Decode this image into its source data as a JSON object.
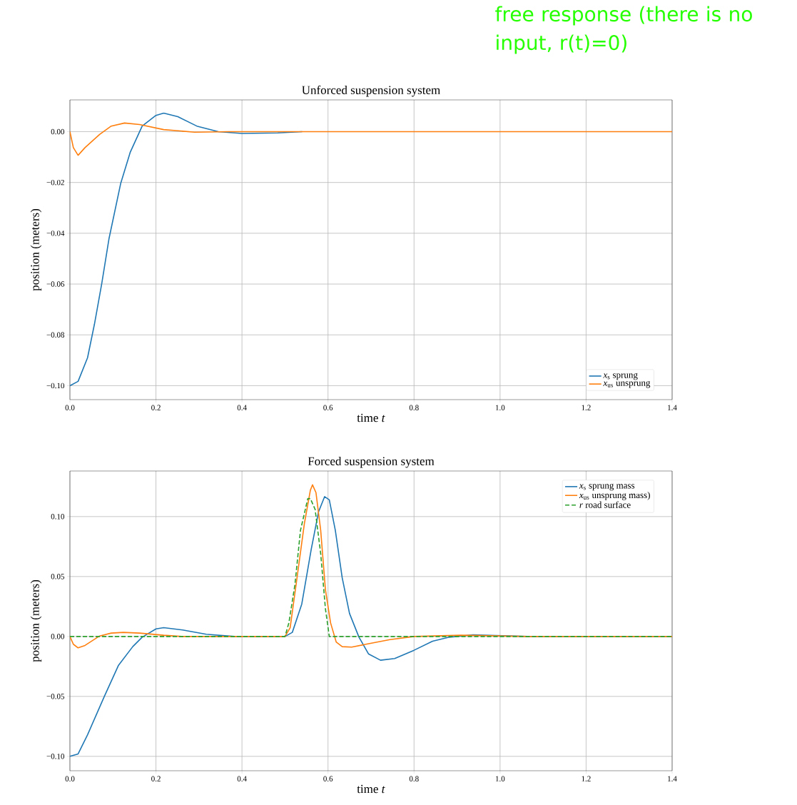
{
  "chart_data": [
    {
      "type": "line",
      "title": "Unforced suspension system",
      "xlabel": "time *t*",
      "ylabel": "position (meters)",
      "xlim": [
        0,
        1.4
      ],
      "ylim": [
        -0.1055,
        0.0125
      ],
      "xticks": [
        {
          "value": 0,
          "label": "0.0"
        },
        {
          "value": 0.2,
          "label": "0.2"
        },
        {
          "value": 0.4,
          "label": "0.4"
        },
        {
          "value": 0.6,
          "label": "0.6"
        },
        {
          "value": 0.8,
          "label": "0.8"
        },
        {
          "value": 1.0,
          "label": "1.0"
        },
        {
          "value": 1.2,
          "label": "1.2"
        },
        {
          "value": 1.4,
          "label": "1.4"
        }
      ],
      "yticks": [
        {
          "value": -0.1,
          "label": "−0.10"
        },
        {
          "value": -0.08,
          "label": "−0.08"
        },
        {
          "value": -0.06,
          "label": "−0.06"
        },
        {
          "value": -0.04,
          "label": "−0.04"
        },
        {
          "value": -0.02,
          "label": "−0.02"
        },
        {
          "value": 0,
          "label": "0.00"
        }
      ],
      "grid": true,
      "legend": "bottom right",
      "annotations": [
        "free response (there is no input, r(t)=0)"
      ],
      "series": [
        {
          "name": "*x*$_{s}$ sprung",
          "color": "#1f77b4",
          "x": [
            0,
            0.019,
            0.041,
            0.057,
            0.074,
            0.091,
            0.118,
            0.14,
            0.168,
            0.2,
            0.218,
            0.251,
            0.295,
            0.345,
            0.4,
            0.483,
            0.54
          ],
          "values": [
            -0.1,
            -0.0983,
            -0.089,
            -0.0758,
            -0.0598,
            -0.042,
            -0.0204,
            -0.0082,
            0.0022,
            0.0064,
            0.0073,
            0.0059,
            0.0022,
            0,
            -0.0007,
            -0.0005,
            0
          ]
        },
        {
          "name": "*x*$_{us}$ unsprung",
          "color": "#ff7f0e",
          "x": [
            0,
            0.008,
            0.019,
            0.035,
            0.069,
            0.096,
            0.127,
            0.162,
            0.218,
            0.29,
            0.37,
            1.4
          ],
          "values": [
            0,
            -0.0063,
            -0.0093,
            -0.0063,
            -0.0011,
            0.0022,
            0.0034,
            0.0028,
            0.0008,
            -0.0002,
            0,
            0
          ]
        }
      ]
    },
    {
      "type": "line",
      "title": "Forced suspension system",
      "xlabel": "time *t*",
      "ylabel": "position (meters)",
      "xlim": [
        0,
        1.4
      ],
      "ylim": [
        -0.112,
        0.138
      ],
      "xticks": [
        {
          "value": 0,
          "label": "0.0"
        },
        {
          "value": 0.2,
          "label": "0.2"
        },
        {
          "value": 0.4,
          "label": "0.4"
        },
        {
          "value": 0.6,
          "label": "0.6"
        },
        {
          "value": 0.8,
          "label": "0.8"
        },
        {
          "value": 1.0,
          "label": "1.0"
        },
        {
          "value": 1.2,
          "label": "1.2"
        },
        {
          "value": 1.4,
          "label": "1.4"
        }
      ],
      "yticks": [
        {
          "value": -0.1,
          "label": "−0.10"
        },
        {
          "value": -0.05,
          "label": "−0.05"
        },
        {
          "value": 0,
          "label": "0.00"
        },
        {
          "value": 0.05,
          "label": "0.05"
        },
        {
          "value": 0.1,
          "label": "0.10"
        }
      ],
      "grid": true,
      "legend": "top right",
      "series": [
        {
          "name": "*x*$_{s}$ sprung mass",
          "color": "#1f77b4",
          "x": [
            0,
            0.019,
            0.041,
            0.08,
            0.113,
            0.146,
            0.168,
            0.2,
            0.218,
            0.262,
            0.317,
            0.383,
            0.5,
            0.517,
            0.539,
            0.561,
            0.578,
            0.592,
            0.603,
            0.617,
            0.633,
            0.65,
            0.672,
            0.694,
            0.722,
            0.755,
            0.8,
            0.843,
            0.882,
            0.937,
            0.992,
            1.064,
            1.4
          ],
          "values": [
            -0.1,
            -0.098,
            -0.082,
            -0.05,
            -0.024,
            -0.0085,
            -0.0006,
            0.0063,
            0.0073,
            0.0054,
            0.0018,
            0,
            0,
            0.0034,
            0.027,
            0.0727,
            0.104,
            0.1166,
            0.114,
            0.0885,
            0.0489,
            0.0192,
            -0.0006,
            -0.0145,
            -0.0198,
            -0.0184,
            -0.0115,
            -0.004,
            -0.0006,
            0.0014,
            0.0008,
            0,
            0
          ]
        },
        {
          "name": "*x*$_{us}$ unsprung mass)",
          "color": "#ff7f0e",
          "x": [
            0,
            0.008,
            0.019,
            0.035,
            0.069,
            0.096,
            0.124,
            0.162,
            0.218,
            0.26,
            0.5,
            0.512,
            0.528,
            0.545,
            0.559,
            0.564,
            0.572,
            0.583,
            0.594,
            0.606,
            0.619,
            0.633,
            0.655,
            0.688,
            0.744,
            0.8,
            0.909,
            1.064,
            1.4
          ],
          "values": [
            0,
            -0.0065,
            -0.0095,
            -0.0075,
            0.0004,
            0.0028,
            0.0034,
            0.0028,
            0.001,
            0,
            0,
            0.0073,
            0.049,
            0.094,
            0.122,
            0.1265,
            0.12,
            0.0885,
            0.039,
            0.0113,
            -0.0046,
            -0.0085,
            -0.0089,
            -0.0065,
            -0.0026,
            0,
            0.001,
            0,
            0
          ]
        },
        {
          "name": "*r* road surface",
          "color": "#2ca02c",
          "line_style": "dashed",
          "x": [
            0,
            0.5,
            0.509,
            0.523,
            0.536,
            0.553,
            0.559,
            0.57,
            0.583,
            0.594,
            0.603,
            1.4
          ],
          "values": [
            0,
            0,
            0.0113,
            0.043,
            0.0885,
            0.115,
            0.115,
            0.106,
            0.069,
            0.023,
            0,
            0
          ]
        }
      ]
    }
  ]
}
